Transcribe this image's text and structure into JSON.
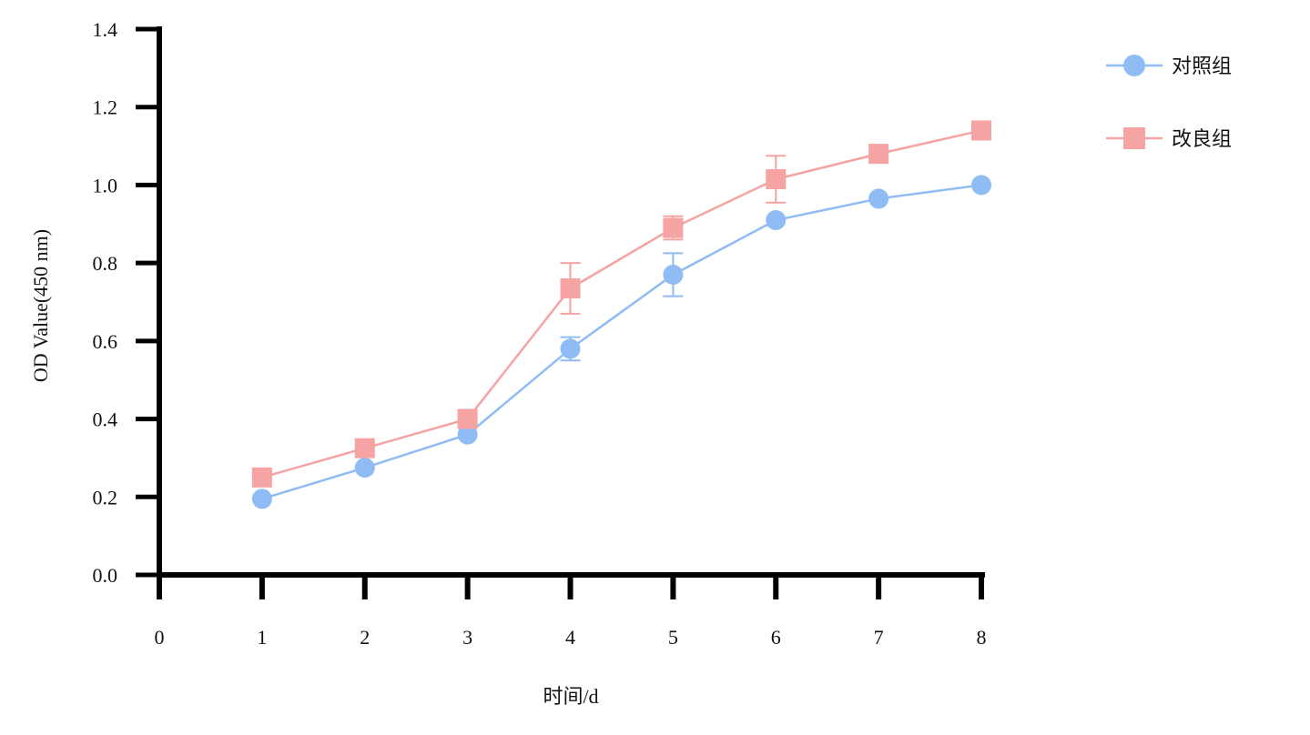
{
  "chart_data": {
    "type": "line",
    "xlabel": "时间/d",
    "ylabel": "OD Value(450 nm)",
    "xlim": [
      0,
      8
    ],
    "ylim": [
      0,
      1.4
    ],
    "x_ticks": [
      "0",
      "1",
      "2",
      "3",
      "4",
      "5",
      "6",
      "7",
      "8"
    ],
    "y_ticks": [
      "0.0",
      "0.2",
      "0.4",
      "0.6",
      "0.8",
      "1.0",
      "1.2",
      "1.4"
    ],
    "grid": false,
    "legend_position": "top-right",
    "x": [
      1,
      2,
      3,
      4,
      5,
      6,
      7,
      8
    ],
    "series": [
      {
        "name": "对照组",
        "marker": "circle",
        "color": "#8fbcf5",
        "values": [
          0.195,
          0.275,
          0.36,
          0.58,
          0.77,
          0.91,
          0.965,
          1.0
        ],
        "errors": [
          0.0,
          0.0,
          0.0,
          0.03,
          0.055,
          0.0,
          0.0,
          0.0
        ]
      },
      {
        "name": "改良组",
        "marker": "square",
        "color": "#f5a3a3",
        "values": [
          0.25,
          0.325,
          0.4,
          0.735,
          0.89,
          1.015,
          1.08,
          1.14
        ],
        "errors": [
          0.0,
          0.0,
          0.0,
          0.065,
          0.03,
          0.06,
          0.0,
          0.0
        ]
      }
    ]
  }
}
